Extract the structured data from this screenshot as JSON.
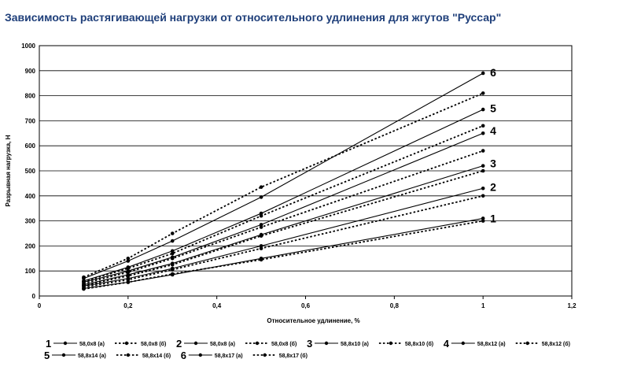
{
  "header": {
    "title": "Зависимость растягивающей нагрузки от относительного удлинения для жгутов \"Руссар\""
  },
  "chart_data": {
    "type": "line",
    "xlabel": "Относительное удлинение, %",
    "ylabel": "Разрывная нагрузка, Н",
    "xlim": [
      0,
      1.2
    ],
    "ylim": [
      0,
      1000
    ],
    "x_ticks": [
      "0",
      "0,2",
      "0,4",
      "0,6",
      "0,8",
      "1",
      "1,2"
    ],
    "y_ticks": [
      "0",
      "100",
      "200",
      "300",
      "400",
      "500",
      "600",
      "700",
      "800",
      "900",
      "1000"
    ],
    "grid": "horizontal",
    "x": [
      0.1,
      0.2,
      0.3,
      0.5,
      1.0
    ],
    "series": [
      {
        "name": "58,0x8 (а)",
        "group": "1",
        "style": "solid",
        "values": [
          30,
          55,
          85,
          150,
          310
        ]
      },
      {
        "name": "58,0x8 (б)",
        "group": "",
        "style": "dotted",
        "values": [
          28,
          55,
          88,
          145,
          300
        ]
      },
      {
        "name": "58,0x8 (а)",
        "group": "2",
        "style": "solid",
        "values": [
          40,
          70,
          110,
          200,
          430
        ]
      },
      {
        "name": "58,0x8 (б)",
        "group": "",
        "style": "dotted",
        "values": [
          35,
          65,
          105,
          190,
          400
        ]
      },
      {
        "name": "58,8x10 (а)",
        "group": "3",
        "style": "solid",
        "values": [
          45,
          85,
          130,
          245,
          520
        ]
      },
      {
        "name": "58,8x10 (б)",
        "group": "",
        "style": "dotted",
        "values": [
          42,
          80,
          125,
          240,
          500
        ]
      },
      {
        "name": "58,8x12 (а)",
        "group": "4",
        "style": "solid",
        "values": [
          55,
          100,
          155,
          285,
          650
        ]
      },
      {
        "name": "58,8x12 (б)",
        "group": "",
        "style": "dotted",
        "values": [
          50,
          95,
          150,
          275,
          580
        ]
      },
      {
        "name": "58,8x14 (а)",
        "group": "5",
        "style": "solid",
        "values": [
          60,
          115,
          180,
          330,
          745
        ]
      },
      {
        "name": "58,8x14 (б)",
        "group": "",
        "style": "dotted",
        "values": [
          58,
          110,
          170,
          320,
          680
        ]
      },
      {
        "name": "58,8x17 (а)",
        "group": "6",
        "style": "solid",
        "values": [
          70,
          140,
          220,
          395,
          890
        ]
      },
      {
        "name": "58,8x17 (б)",
        "group": "",
        "style": "dotted",
        "values": [
          75,
          150,
          250,
          435,
          810
        ]
      }
    ],
    "curve_labels": [
      {
        "text": "1",
        "y": 310
      },
      {
        "text": "2",
        "y": 435
      },
      {
        "text": "3",
        "y": 530
      },
      {
        "text": "4",
        "y": 660
      },
      {
        "text": "5",
        "y": 750
      },
      {
        "text": "6",
        "y": 893
      }
    ],
    "legend_placement": "bottom"
  },
  "style": {
    "title_color": "#1f3f7a",
    "line_color": "#000000",
    "grid_color": "#000000"
  }
}
